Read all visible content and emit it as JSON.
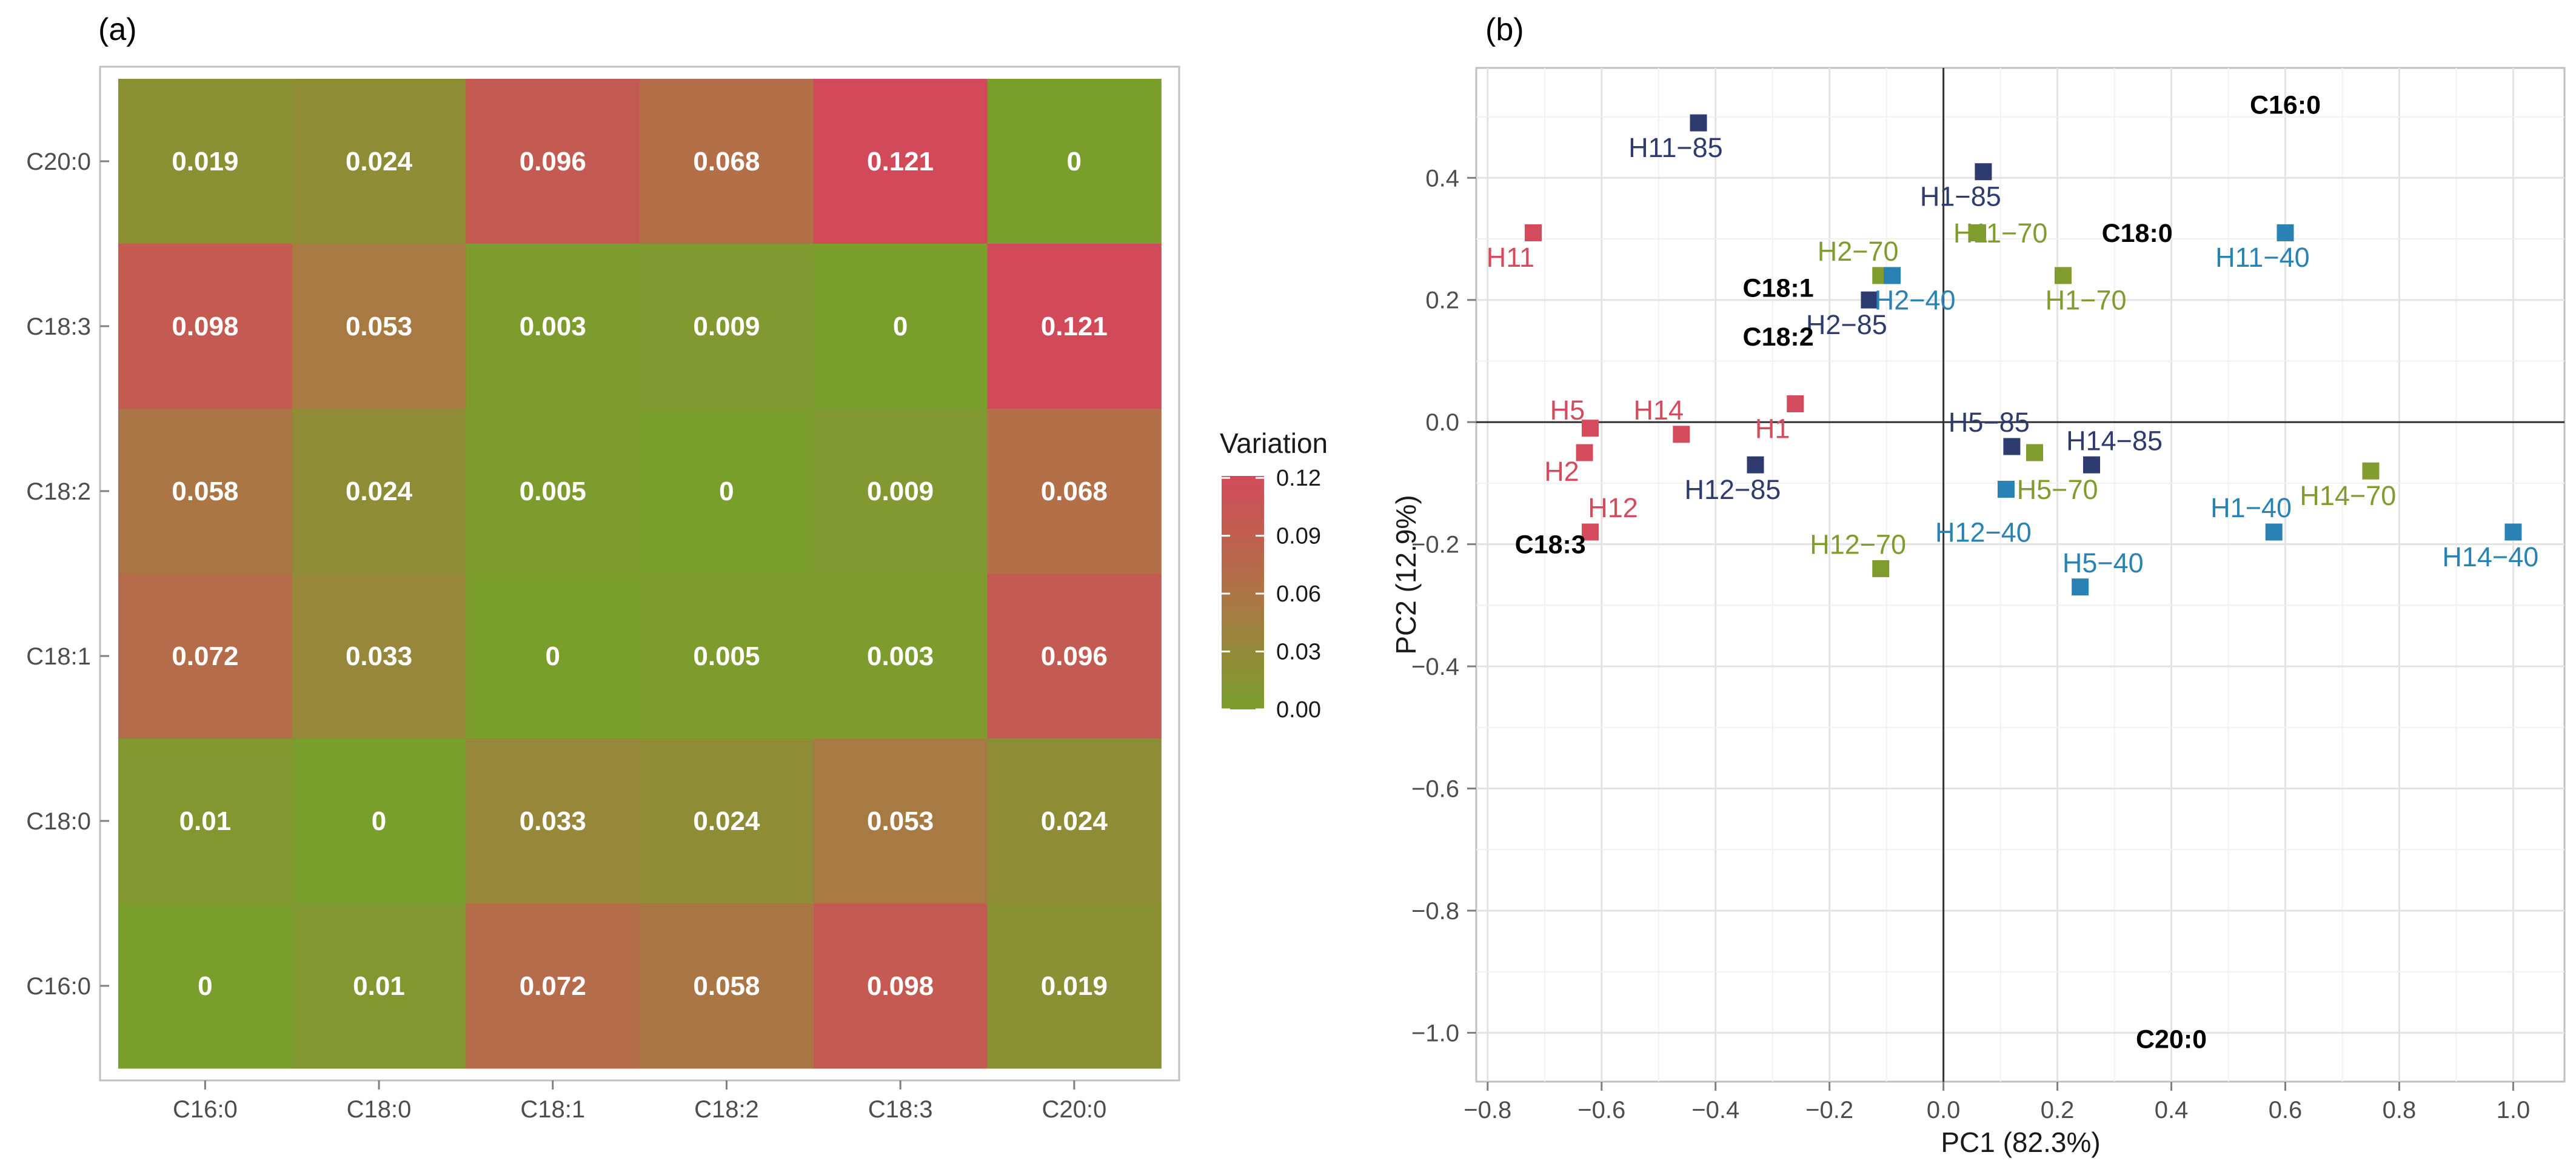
{
  "colors": {
    "low": "#7A9E2C",
    "mid": "#AD7446",
    "high": "#D24A5A",
    "group_base": "#D34B5D",
    "group_85": "#2D3B6E",
    "group_70": "#809C2E",
    "group_40": "#2A82B4",
    "grid": "#e6e6e6",
    "panel_border": "#c0c0c0"
  },
  "chart_data": [
    {
      "type": "heatmap",
      "panel_label": "(a)",
      "title": "",
      "x_categories": [
        "C16:0",
        "C18:0",
        "C18:1",
        "C18:2",
        "C18:3",
        "C20:0"
      ],
      "y_categories": [
        "C20:0",
        "C18:3",
        "C18:2",
        "C18:1",
        "C18:0",
        "C16:0"
      ],
      "values": [
        [
          0.019,
          0.024,
          0.096,
          0.068,
          0.121,
          0
        ],
        [
          0.098,
          0.053,
          0.003,
          0.009,
          0,
          0.121
        ],
        [
          0.058,
          0.024,
          0.005,
          0,
          0.009,
          0.068
        ],
        [
          0.072,
          0.033,
          0,
          0.005,
          0.003,
          0.096
        ],
        [
          0.01,
          0,
          0.033,
          0.024,
          0.053,
          0.024
        ],
        [
          0,
          0.01,
          0.072,
          0.058,
          0.098,
          0.019
        ]
      ],
      "value_labels": [
        [
          "0.019",
          "0.024",
          "0.096",
          "0.068",
          "0.121",
          "0"
        ],
        [
          "0.098",
          "0.053",
          "0.003",
          "0.009",
          "0",
          "0.121"
        ],
        [
          "0.058",
          "0.024",
          "0.005",
          "0",
          "0.009",
          "0.068"
        ],
        [
          "0.072",
          "0.033",
          "0",
          "0.005",
          "0.003",
          "0.096"
        ],
        [
          "0.01",
          "0",
          "0.033",
          "0.024",
          "0.053",
          "0.024"
        ],
        [
          "0",
          "0.01",
          "0.072",
          "0.058",
          "0.098",
          "0.019"
        ]
      ],
      "legend": {
        "title": "Variation",
        "range": [
          0,
          0.121
        ],
        "breaks": [
          0.12,
          0.09,
          0.06,
          0.03,
          0.0
        ],
        "break_labels": [
          "0.12",
          "0.09",
          "0.06",
          "0.03",
          "0.00"
        ]
      }
    },
    {
      "type": "scatter",
      "panel_label": "(b)",
      "title": "",
      "xlabel": "PC1 (82.3%)",
      "ylabel": "PC2 (12.9%)",
      "xlim": [
        -0.82,
        1.09
      ],
      "ylim": [
        -1.08,
        0.58
      ],
      "x_ticks": [
        -0.8,
        -0.6,
        -0.4,
        -0.2,
        0.0,
        0.2,
        0.4,
        0.6,
        0.8,
        1.0
      ],
      "x_tick_labels": [
        "−0.8",
        "−0.6",
        "−0.4",
        "−0.2",
        "0.0",
        "0.2",
        "0.4",
        "0.6",
        "0.8",
        "1.0"
      ],
      "y_ticks": [
        0.4,
        0.2,
        0.0,
        -0.2,
        -0.4,
        -0.6,
        -0.8,
        -1.0
      ],
      "y_tick_labels": [
        "0.4",
        "0.2",
        "0.0",
        "−0.2",
        "−0.4",
        "−0.6",
        "−0.8",
        "−1.0"
      ],
      "points": [
        {
          "label": "H11",
          "x": -0.72,
          "y": 0.31,
          "group": "base",
          "lx": -0.76,
          "ly": 0.27
        },
        {
          "label": "H5",
          "x": -0.62,
          "y": -0.01,
          "group": "base",
          "lx": -0.66,
          "ly": 0.02
        },
        {
          "label": "H2",
          "x": -0.63,
          "y": -0.05,
          "group": "base",
          "lx": -0.67,
          "ly": -0.08
        },
        {
          "label": "H12",
          "x": -0.62,
          "y": -0.18,
          "group": "base",
          "lx": -0.58,
          "ly": -0.14
        },
        {
          "label": "H14",
          "x": -0.46,
          "y": -0.02,
          "group": "base",
          "lx": -0.5,
          "ly": 0.02
        },
        {
          "label": "H1",
          "x": -0.26,
          "y": 0.03,
          "group": "base",
          "lx": -0.3,
          "ly": -0.01
        },
        {
          "label": "H11−85",
          "x": -0.43,
          "y": 0.49,
          "group": "85",
          "lx": -0.47,
          "ly": 0.45
        },
        {
          "label": "H1−85",
          "x": 0.07,
          "y": 0.41,
          "group": "85",
          "lx": 0.03,
          "ly": 0.37
        },
        {
          "label": "H2−85",
          "x": -0.13,
          "y": 0.2,
          "group": "85",
          "lx": -0.17,
          "ly": 0.16
        },
        {
          "label": "H12−85",
          "x": -0.33,
          "y": -0.07,
          "group": "85",
          "lx": -0.37,
          "ly": -0.11
        },
        {
          "label": "H5−85",
          "x": 0.12,
          "y": -0.04,
          "group": "85",
          "lx": 0.08,
          "ly": 0.0
        },
        {
          "label": "H14−85",
          "x": 0.26,
          "y": -0.07,
          "group": "85",
          "lx": 0.3,
          "ly": -0.03
        },
        {
          "label": "H2−70",
          "x": -0.11,
          "y": 0.24,
          "group": "70",
          "lx": -0.15,
          "ly": 0.28
        },
        {
          "label": "H11−70",
          "x": 0.06,
          "y": 0.31,
          "group": "70",
          "lx": 0.1,
          "ly": 0.31
        },
        {
          "label": "H1−70",
          "x": 0.21,
          "y": 0.24,
          "group": "70",
          "lx": 0.25,
          "ly": 0.2
        },
        {
          "label": "H5−70",
          "x": 0.16,
          "y": -0.05,
          "group": "70",
          "lx": 0.2,
          "ly": -0.11
        },
        {
          "label": "H12−70",
          "x": -0.11,
          "y": -0.24,
          "group": "70",
          "lx": -0.15,
          "ly": -0.2
        },
        {
          "label": "H14−70",
          "x": 0.75,
          "y": -0.08,
          "group": "70",
          "lx": 0.71,
          "ly": -0.12
        },
        {
          "label": "H11−40",
          "x": 0.6,
          "y": 0.31,
          "group": "40",
          "lx": 0.56,
          "ly": 0.27
        },
        {
          "label": "H2−40",
          "x": -0.09,
          "y": 0.24,
          "group": "40",
          "lx": -0.05,
          "ly": 0.2
        },
        {
          "label": "H12−40",
          "x": 0.11,
          "y": -0.11,
          "group": "40",
          "lx": 0.07,
          "ly": -0.18
        },
        {
          "label": "H5−40",
          "x": 0.24,
          "y": -0.27,
          "group": "40",
          "lx": 0.28,
          "ly": -0.23
        },
        {
          "label": "H1−40",
          "x": 0.58,
          "y": -0.18,
          "group": "40",
          "lx": 0.54,
          "ly": -0.14
        },
        {
          "label": "H14−40",
          "x": 1.0,
          "y": -0.18,
          "group": "40",
          "lx": 0.96,
          "ly": -0.22
        }
      ],
      "variable_labels": [
        {
          "label": "C16:0",
          "x": 0.6,
          "y": 0.52
        },
        {
          "label": "C18:0",
          "x": 0.34,
          "y": 0.31
        },
        {
          "label": "C18:1",
          "x": -0.29,
          "y": 0.22
        },
        {
          "label": "C18:2",
          "x": -0.29,
          "y": 0.14
        },
        {
          "label": "C18:3",
          "x": -0.69,
          "y": -0.2
        },
        {
          "label": "C20:0",
          "x": 0.4,
          "y": -1.01
        }
      ]
    }
  ]
}
